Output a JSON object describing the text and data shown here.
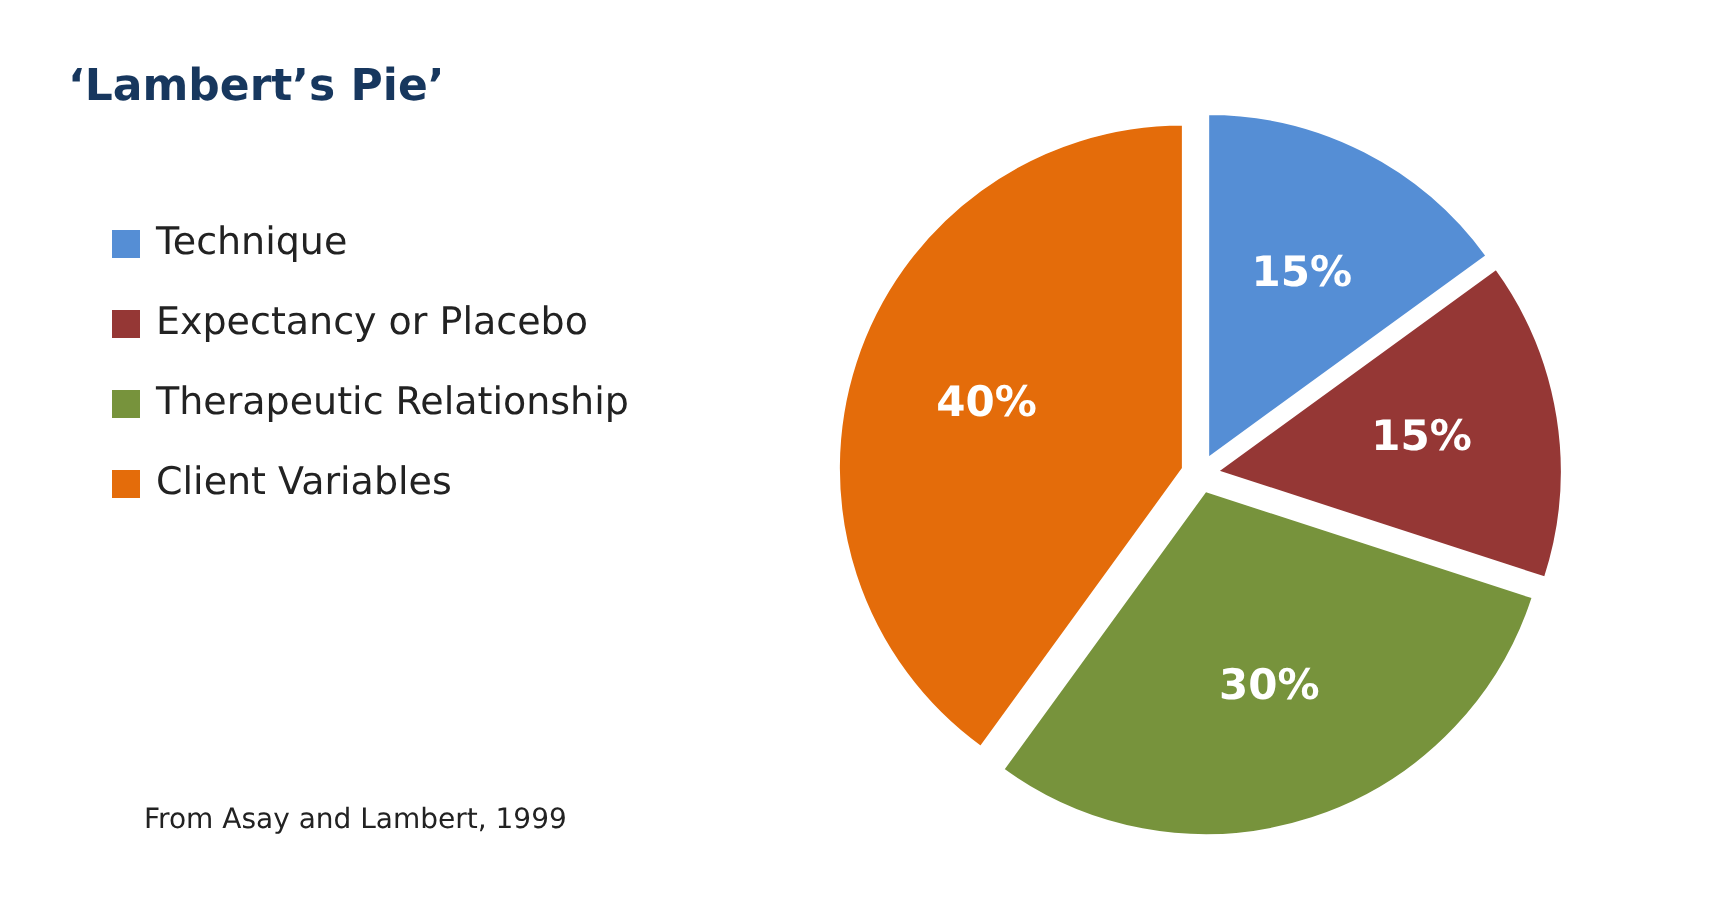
{
  "chart_data": {
    "type": "pie",
    "title": "‘Lambert’s Pie’",
    "categories": [
      "Technique",
      "Expectancy or Placebo",
      "Therapeutic Relationship",
      "Client Variables"
    ],
    "values": [
      15,
      15,
      30,
      40
    ],
    "colors": [
      "#558ed5",
      "#953735",
      "#77933c",
      "#e46c0a"
    ],
    "value_labels": [
      "15%",
      "15%",
      "30%",
      "40%"
    ],
    "legend": "left",
    "annotations": [
      "From Asay and Lambert, 1999"
    ]
  }
}
